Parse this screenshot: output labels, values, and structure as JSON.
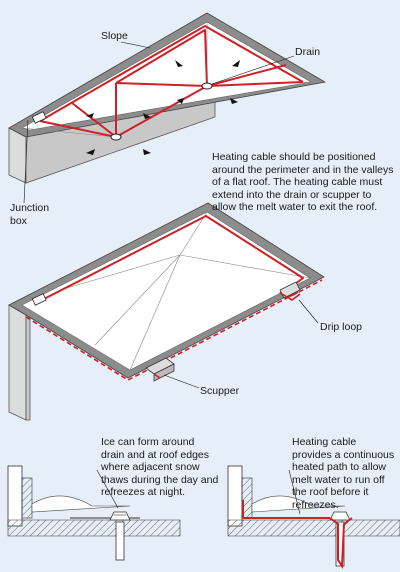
{
  "labels": {
    "slope": "Slope",
    "drain": "Drain",
    "instructions": "Heating cable should be positioned around the perimeter and in the valleys of a flat roof. The heating cable must extend into the drain or scupper to allow the melt water to exit the roof.",
    "junction_box": "Junction box",
    "drip_loop": "Drip loop",
    "scupper": "Scupper",
    "ice_note": "Ice can form around drain and at roof edges where adjacent snow thaws during the day and refreezes at night.",
    "cable_note": "Heating cable provides a continuous heated path to allow melt water to run off the roof before it refreezes."
  },
  "colors": {
    "background": "#e6eff7",
    "roof_surface": "#ffffff",
    "parapet": "#8c8c8c",
    "heating_cable": "#d11f26",
    "leader_line": "#1a1a1a"
  },
  "icons": {
    "slope_arrow": "black-triangle-arrow",
    "drain": "round-drain",
    "junction_box": "box",
    "scupper": "scupper-channel"
  }
}
